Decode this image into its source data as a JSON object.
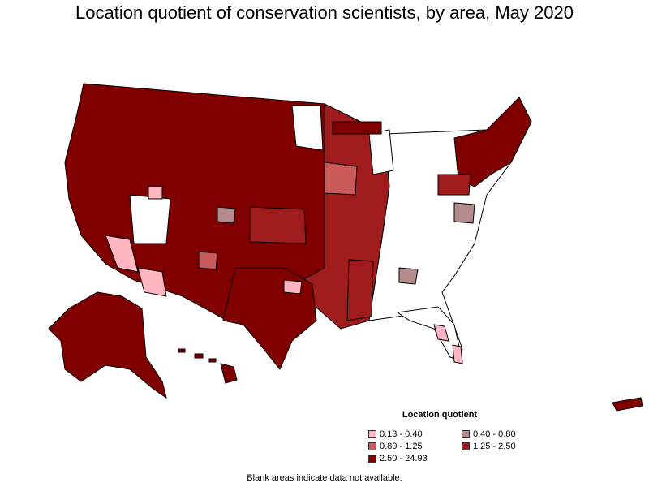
{
  "title": "Location quotient of conservation scientists, by area, May 2020",
  "legend": {
    "title": "Location quotient",
    "items": [
      {
        "label": "0.13 - 0.40",
        "color": "#ffb6c1"
      },
      {
        "label": "0.40 - 0.80",
        "color": "#b48c8c"
      },
      {
        "label": "0.80 - 1.25",
        "color": "#c85a5a"
      },
      {
        "label": "1.25 - 2.50",
        "color": "#a01c1c"
      },
      {
        "label": "2.50 - 24.93",
        "color": "#800000"
      }
    ]
  },
  "footnote": "Blank areas indicate data not available.",
  "colors": {
    "border": "#000000",
    "blank": "#ffffff",
    "dark": "#800000",
    "medium_dark": "#a01c1c",
    "medium": "#c85a5a",
    "light_brown": "#b48c8c",
    "pink": "#ffb6c1"
  }
}
